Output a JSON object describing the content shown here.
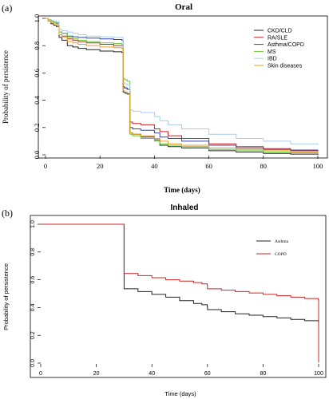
{
  "chart_data": [
    {
      "panel": "(a)",
      "type": "line",
      "title": "Oral",
      "xlabel": "Time (days)",
      "ylabel": "Probability of persistence",
      "xlim": [
        0,
        100
      ],
      "ylim": [
        0,
        1
      ],
      "xticks": [
        0,
        20,
        40,
        60,
        80,
        100
      ],
      "yticks": [
        0.0,
        0.2,
        0.4,
        0.6,
        0.8,
        1.0
      ],
      "legend_position": "top-right",
      "series": [
        {
          "name": "CKD/CLD",
          "color": "#222222",
          "x": [
            0,
            1,
            2,
            3,
            4,
            5,
            6,
            8,
            10,
            12,
            15,
            20,
            25,
            28,
            28.5,
            29,
            29.5,
            30,
            31,
            32,
            35,
            40,
            42,
            45,
            50,
            60,
            70,
            80,
            90,
            100
          ],
          "y": [
            1.0,
            0.98,
            0.96,
            0.95,
            0.94,
            0.86,
            0.84,
            0.8,
            0.79,
            0.78,
            0.77,
            0.76,
            0.755,
            0.75,
            0.46,
            0.455,
            0.45,
            0.445,
            0.16,
            0.15,
            0.13,
            0.11,
            0.07,
            0.06,
            0.05,
            0.03,
            0.02,
            0.01,
            0.005,
            0.0
          ]
        },
        {
          "name": "RA/SLE",
          "color": "#cc2222",
          "x": [
            0,
            1,
            2,
            3,
            4,
            5,
            6,
            8,
            10,
            12,
            15,
            20,
            25,
            28,
            28.5,
            29,
            30,
            31,
            32,
            35,
            40,
            42,
            45,
            50,
            60,
            70,
            80,
            90,
            100
          ],
          "y": [
            1.0,
            0.99,
            0.98,
            0.97,
            0.96,
            0.88,
            0.87,
            0.85,
            0.84,
            0.83,
            0.82,
            0.81,
            0.8,
            0.8,
            0.5,
            0.49,
            0.48,
            0.24,
            0.23,
            0.22,
            0.19,
            0.17,
            0.14,
            0.12,
            0.08,
            0.06,
            0.045,
            0.035,
            0.03
          ]
        },
        {
          "name": "Asthma/COPD",
          "color": "#3344aa",
          "x": [
            0,
            1,
            2,
            3,
            4,
            5,
            6,
            8,
            10,
            12,
            15,
            20,
            25,
            28,
            28.5,
            29,
            30,
            31,
            32,
            35,
            40,
            42,
            45,
            50,
            60,
            70,
            80,
            90,
            100
          ],
          "y": [
            1.0,
            0.99,
            0.98,
            0.97,
            0.965,
            0.9,
            0.89,
            0.87,
            0.865,
            0.86,
            0.855,
            0.85,
            0.845,
            0.84,
            0.5,
            0.49,
            0.48,
            0.2,
            0.19,
            0.18,
            0.16,
            0.13,
            0.12,
            0.1,
            0.07,
            0.05,
            0.04,
            0.03,
            0.025
          ]
        },
        {
          "name": "MS",
          "color": "#66cc33",
          "x": [
            0,
            1,
            2,
            3,
            4,
            5,
            6,
            8,
            10,
            12,
            15,
            20,
            25,
            28,
            28.5,
            29,
            30,
            31,
            32,
            35,
            40,
            42,
            45,
            50,
            60,
            70,
            80,
            90,
            100
          ],
          "y": [
            1.0,
            0.99,
            0.98,
            0.97,
            0.96,
            0.9,
            0.89,
            0.86,
            0.85,
            0.84,
            0.83,
            0.82,
            0.815,
            0.81,
            0.56,
            0.55,
            0.54,
            0.15,
            0.14,
            0.12,
            0.1,
            0.08,
            0.07,
            0.06,
            0.04,
            0.03,
            0.02,
            0.015,
            0.01
          ]
        },
        {
          "name": "IBD",
          "color": "#aaccee",
          "x": [
            0,
            1,
            2,
            3,
            4,
            5,
            6,
            8,
            10,
            12,
            15,
            20,
            25,
            28,
            28.5,
            29,
            30,
            31,
            32,
            35,
            40,
            42,
            45,
            50,
            60,
            70,
            80,
            90,
            100
          ],
          "y": [
            1.0,
            0.99,
            0.985,
            0.98,
            0.975,
            0.92,
            0.91,
            0.9,
            0.89,
            0.88,
            0.87,
            0.865,
            0.86,
            0.86,
            0.53,
            0.52,
            0.51,
            0.33,
            0.32,
            0.31,
            0.28,
            0.25,
            0.22,
            0.19,
            0.15,
            0.12,
            0.1,
            0.08,
            0.07
          ]
        },
        {
          "name": "Skin diseases",
          "color": "#e6a020",
          "x": [
            0,
            1,
            2,
            3,
            4,
            5,
            6,
            8,
            10,
            12,
            15,
            20,
            25,
            28,
            28.5,
            29,
            30,
            31,
            32,
            35,
            40,
            42,
            45,
            50,
            60,
            70,
            80,
            90,
            100
          ],
          "y": [
            1.0,
            0.98,
            0.97,
            0.96,
            0.95,
            0.88,
            0.86,
            0.83,
            0.82,
            0.81,
            0.8,
            0.79,
            0.785,
            0.78,
            0.47,
            0.46,
            0.45,
            0.16,
            0.15,
            0.14,
            0.12,
            0.1,
            0.08,
            0.07,
            0.05,
            0.04,
            0.03,
            0.02,
            0.015
          ]
        }
      ]
    },
    {
      "panel": "(b)",
      "type": "line",
      "title": "Inhaled",
      "xlabel": "Time (days)",
      "ylabel": "Probability of persistence",
      "xlim": [
        0,
        100
      ],
      "ylim": [
        0,
        1
      ],
      "xticks": [
        0,
        20,
        40,
        60,
        80,
        100
      ],
      "yticks": [
        0.0,
        0.2,
        0.4,
        0.6,
        0.8,
        1.0
      ],
      "legend_position": "top-right",
      "series": [
        {
          "name": "Asthma",
          "color": "#222222",
          "x": [
            0,
            29.9,
            30,
            35,
            40,
            45,
            50,
            55,
            58,
            59.9,
            60,
            65,
            70,
            75,
            80,
            85,
            90,
            95,
            99.9,
            100
          ],
          "y": [
            1.0,
            1.0,
            0.535,
            0.515,
            0.495,
            0.475,
            0.45,
            0.43,
            0.42,
            0.41,
            0.385,
            0.37,
            0.355,
            0.345,
            0.335,
            0.325,
            0.315,
            0.305,
            0.3,
            0.005
          ]
        },
        {
          "name": "COPD",
          "color": "#cc2222",
          "x": [
            0,
            29.9,
            30,
            35,
            40,
            45,
            50,
            55,
            58,
            59.9,
            60,
            65,
            70,
            75,
            80,
            85,
            90,
            95,
            99.9,
            100
          ],
          "y": [
            1.0,
            1.0,
            0.645,
            0.63,
            0.615,
            0.6,
            0.59,
            0.58,
            0.57,
            0.565,
            0.535,
            0.525,
            0.515,
            0.505,
            0.495,
            0.485,
            0.475,
            0.465,
            0.455,
            0.005
          ]
        }
      ]
    }
  ]
}
